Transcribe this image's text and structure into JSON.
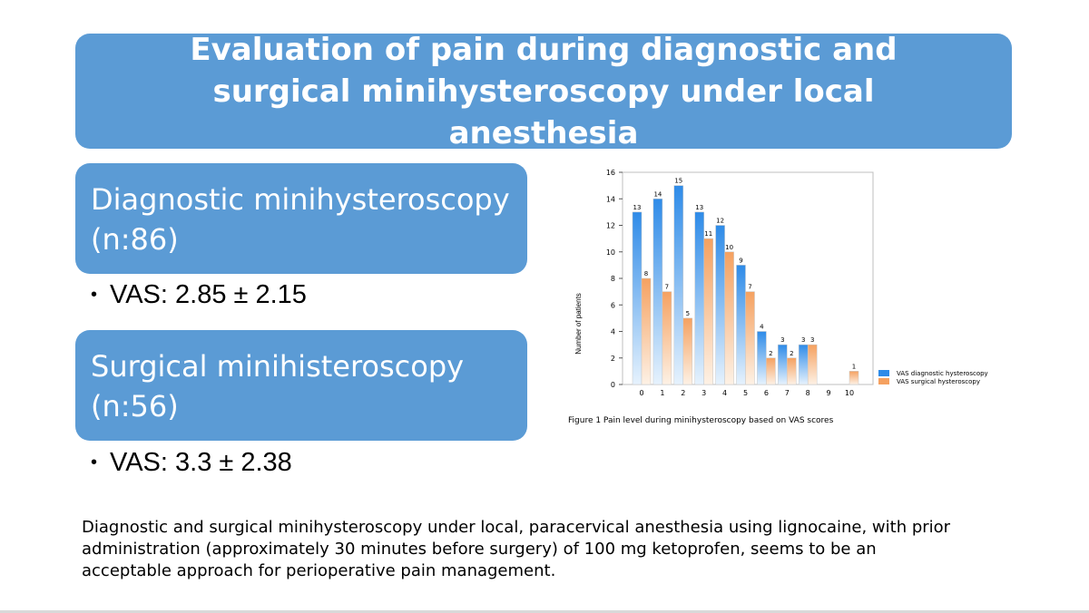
{
  "slide": {
    "title": "Evaluation of pain during diagnostic and surgical minihysteroscopy under local anesthesia",
    "diagnostic": {
      "heading": "Diagnostic minihysteroscopy",
      "n": "(n:86)",
      "vas": "VAS: 2.85 ± 2.15"
    },
    "surgical": {
      "heading": "Surgical minihisteroscopy",
      "n": "(n:56)",
      "vas": "VAS: 3.3 ± 2.38"
    },
    "conclusion": "Diagnostic and surgical minihysteroscopy under local, paracervical anesthesia using lignocaine, with prior administration (approximately 30 minutes before surgery) of 100 mg ketoprofen, seems to be an acceptable approach for perioperative pain management.",
    "bullet_glyph": "•"
  },
  "chart_data": {
    "type": "bar",
    "title": "",
    "caption": "Figure 1 Pain level during minihysteroscopy based on VAS scores",
    "xlabel": "",
    "ylabel": "Number of patients",
    "categories": [
      "0",
      "1",
      "2",
      "3",
      "4",
      "5",
      "6",
      "7",
      "8",
      "9",
      "10"
    ],
    "yticks": [
      0,
      2,
      4,
      6,
      8,
      10,
      12,
      14,
      16
    ],
    "ylim": [
      0,
      16
    ],
    "grid": false,
    "legend_position": "right",
    "series": [
      {
        "name": "VAS diagnostic hysteroscopy",
        "color": "#2e8be8",
        "values": [
          13,
          14,
          15,
          13,
          12,
          9,
          4,
          3,
          3,
          0,
          0
        ]
      },
      {
        "name": "VAS surgical hysteroscopy",
        "color": "#f5a160",
        "values": [
          8,
          7,
          5,
          11,
          10,
          7,
          2,
          2,
          3,
          0,
          1
        ]
      }
    ]
  }
}
